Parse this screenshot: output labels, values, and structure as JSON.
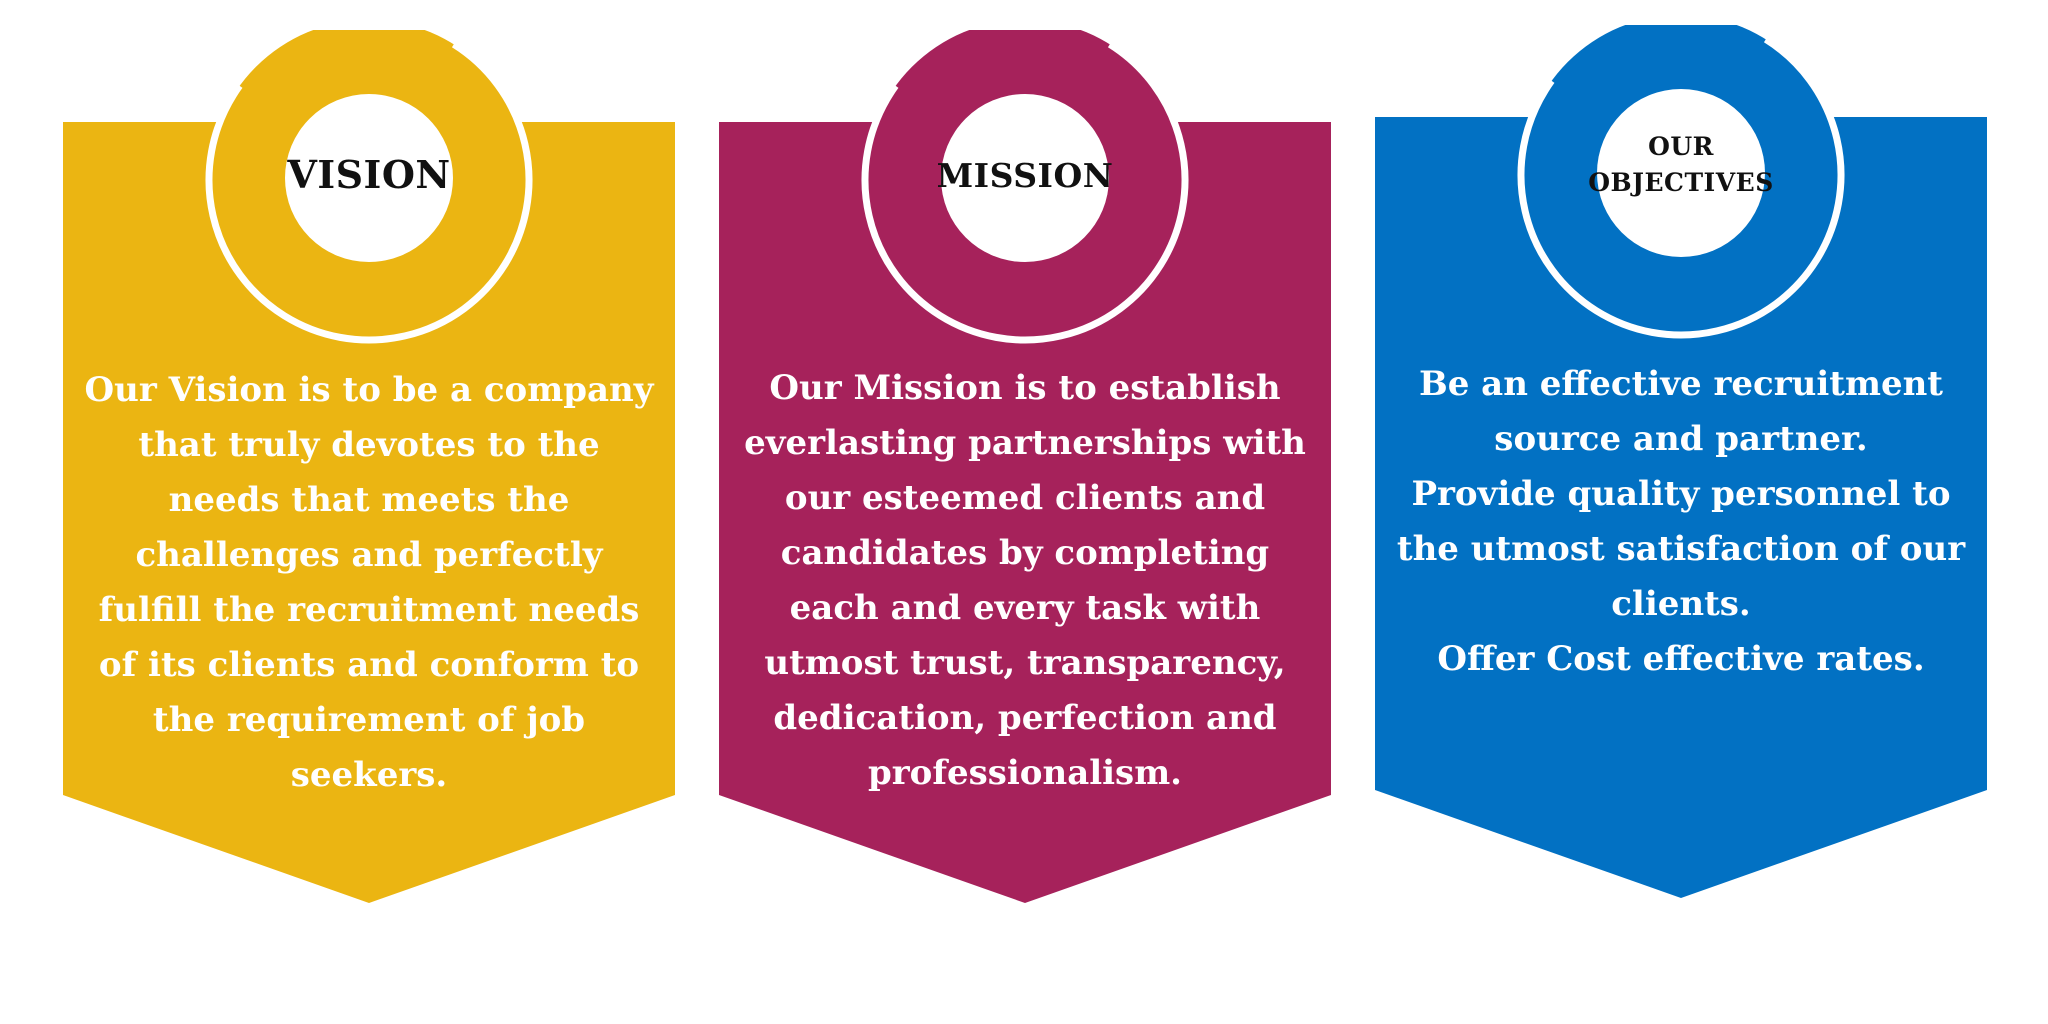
{
  "panels": [
    {
      "id": "vision",
      "color": "#ebb512",
      "title": "VISION",
      "lines": [
        "Our Vision is to be a company that truly devotes to the needs that meets the challenges and perfectly fulfill the recruitment needs of its clients and conform to the requirement of job seekers."
      ]
    },
    {
      "id": "mission",
      "color": "#a6225b",
      "title": "MISSION",
      "lines": [
        "Our Mission is to establish everlasting partnerships with our esteemed clients and candidates by completing each and every task with utmost trust, transparency, dedication, perfection and professionalism."
      ]
    },
    {
      "id": "objectives",
      "color": "#0271c3",
      "title_line1": "OUR",
      "title_line2": "OBJECTIVES",
      "lines": [
        "Be an effective recruitment source and partner.",
        "Provide quality personnel to the utmost satisfaction of our clients.",
        "Offer Cost effective rates."
      ]
    }
  ]
}
